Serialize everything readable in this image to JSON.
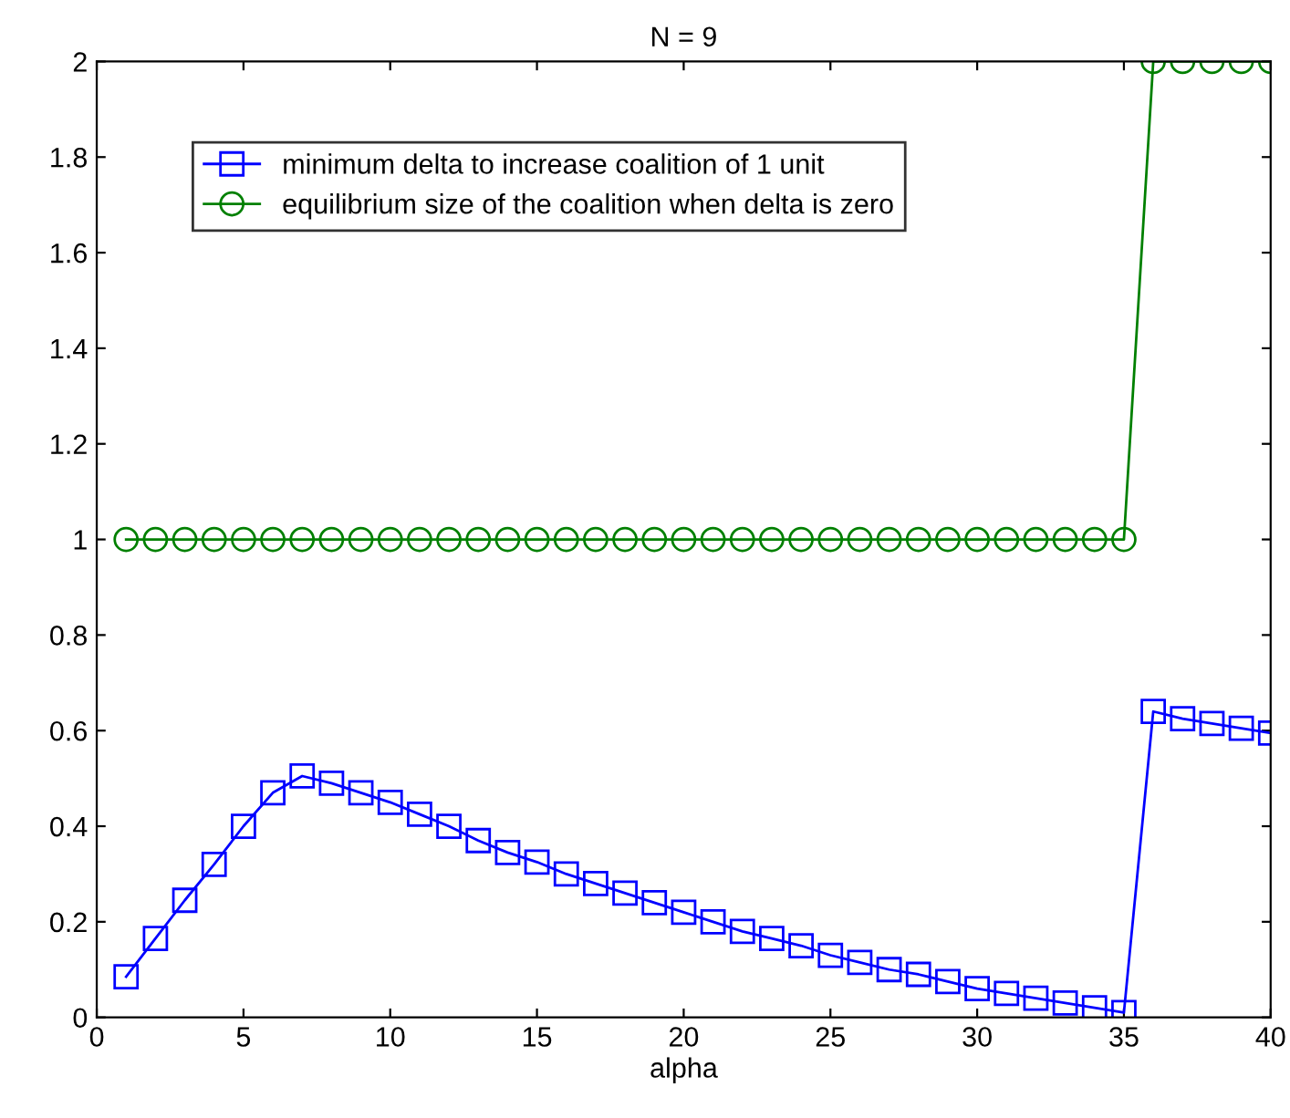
{
  "chart_data": {
    "type": "line",
    "title": "N = 9",
    "xlabel": "alpha",
    "x": [
      1,
      2,
      3,
      4,
      5,
      6,
      7,
      8,
      9,
      10,
      11,
      12,
      13,
      14,
      15,
      16,
      17,
      18,
      19,
      20,
      21,
      22,
      23,
      24,
      25,
      26,
      27,
      28,
      29,
      30,
      31,
      32,
      33,
      34,
      35,
      36,
      37,
      38,
      39,
      40
    ],
    "series": [
      {
        "name": "minimum delta to increase coalition of 1 unit",
        "color": "#0000ff",
        "marker": "square",
        "values": [
          0.085,
          0.165,
          0.245,
          0.32,
          0.4,
          0.47,
          0.505,
          0.49,
          0.47,
          0.45,
          0.425,
          0.4,
          0.37,
          0.345,
          0.325,
          0.3,
          0.28,
          0.26,
          0.24,
          0.22,
          0.2,
          0.18,
          0.165,
          0.15,
          0.13,
          0.115,
          0.1,
          0.09,
          0.075,
          0.06,
          0.05,
          0.04,
          0.03,
          0.02,
          0.01,
          0.64,
          0.625,
          0.615,
          0.605,
          0.595
        ]
      },
      {
        "name": "equilibrium size of the coalition when delta is zero",
        "color": "#008000",
        "marker": "circle",
        "values": [
          1,
          1,
          1,
          1,
          1,
          1,
          1,
          1,
          1,
          1,
          1,
          1,
          1,
          1,
          1,
          1,
          1,
          1,
          1,
          1,
          1,
          1,
          1,
          1,
          1,
          1,
          1,
          1,
          1,
          1,
          1,
          1,
          1,
          1,
          1,
          2,
          2,
          2,
          2,
          2
        ]
      }
    ],
    "xlim": [
      0,
      40
    ],
    "xticks": [
      0,
      5,
      10,
      15,
      20,
      25,
      30,
      35,
      40
    ],
    "ylim": [
      0,
      2
    ],
    "yticks": [
      0,
      0.2,
      0.4,
      0.6,
      0.8,
      1,
      1.2,
      1.4,
      1.6,
      1.8,
      2
    ],
    "grid": false,
    "legend": "top left",
    "line_style": "solid"
  }
}
